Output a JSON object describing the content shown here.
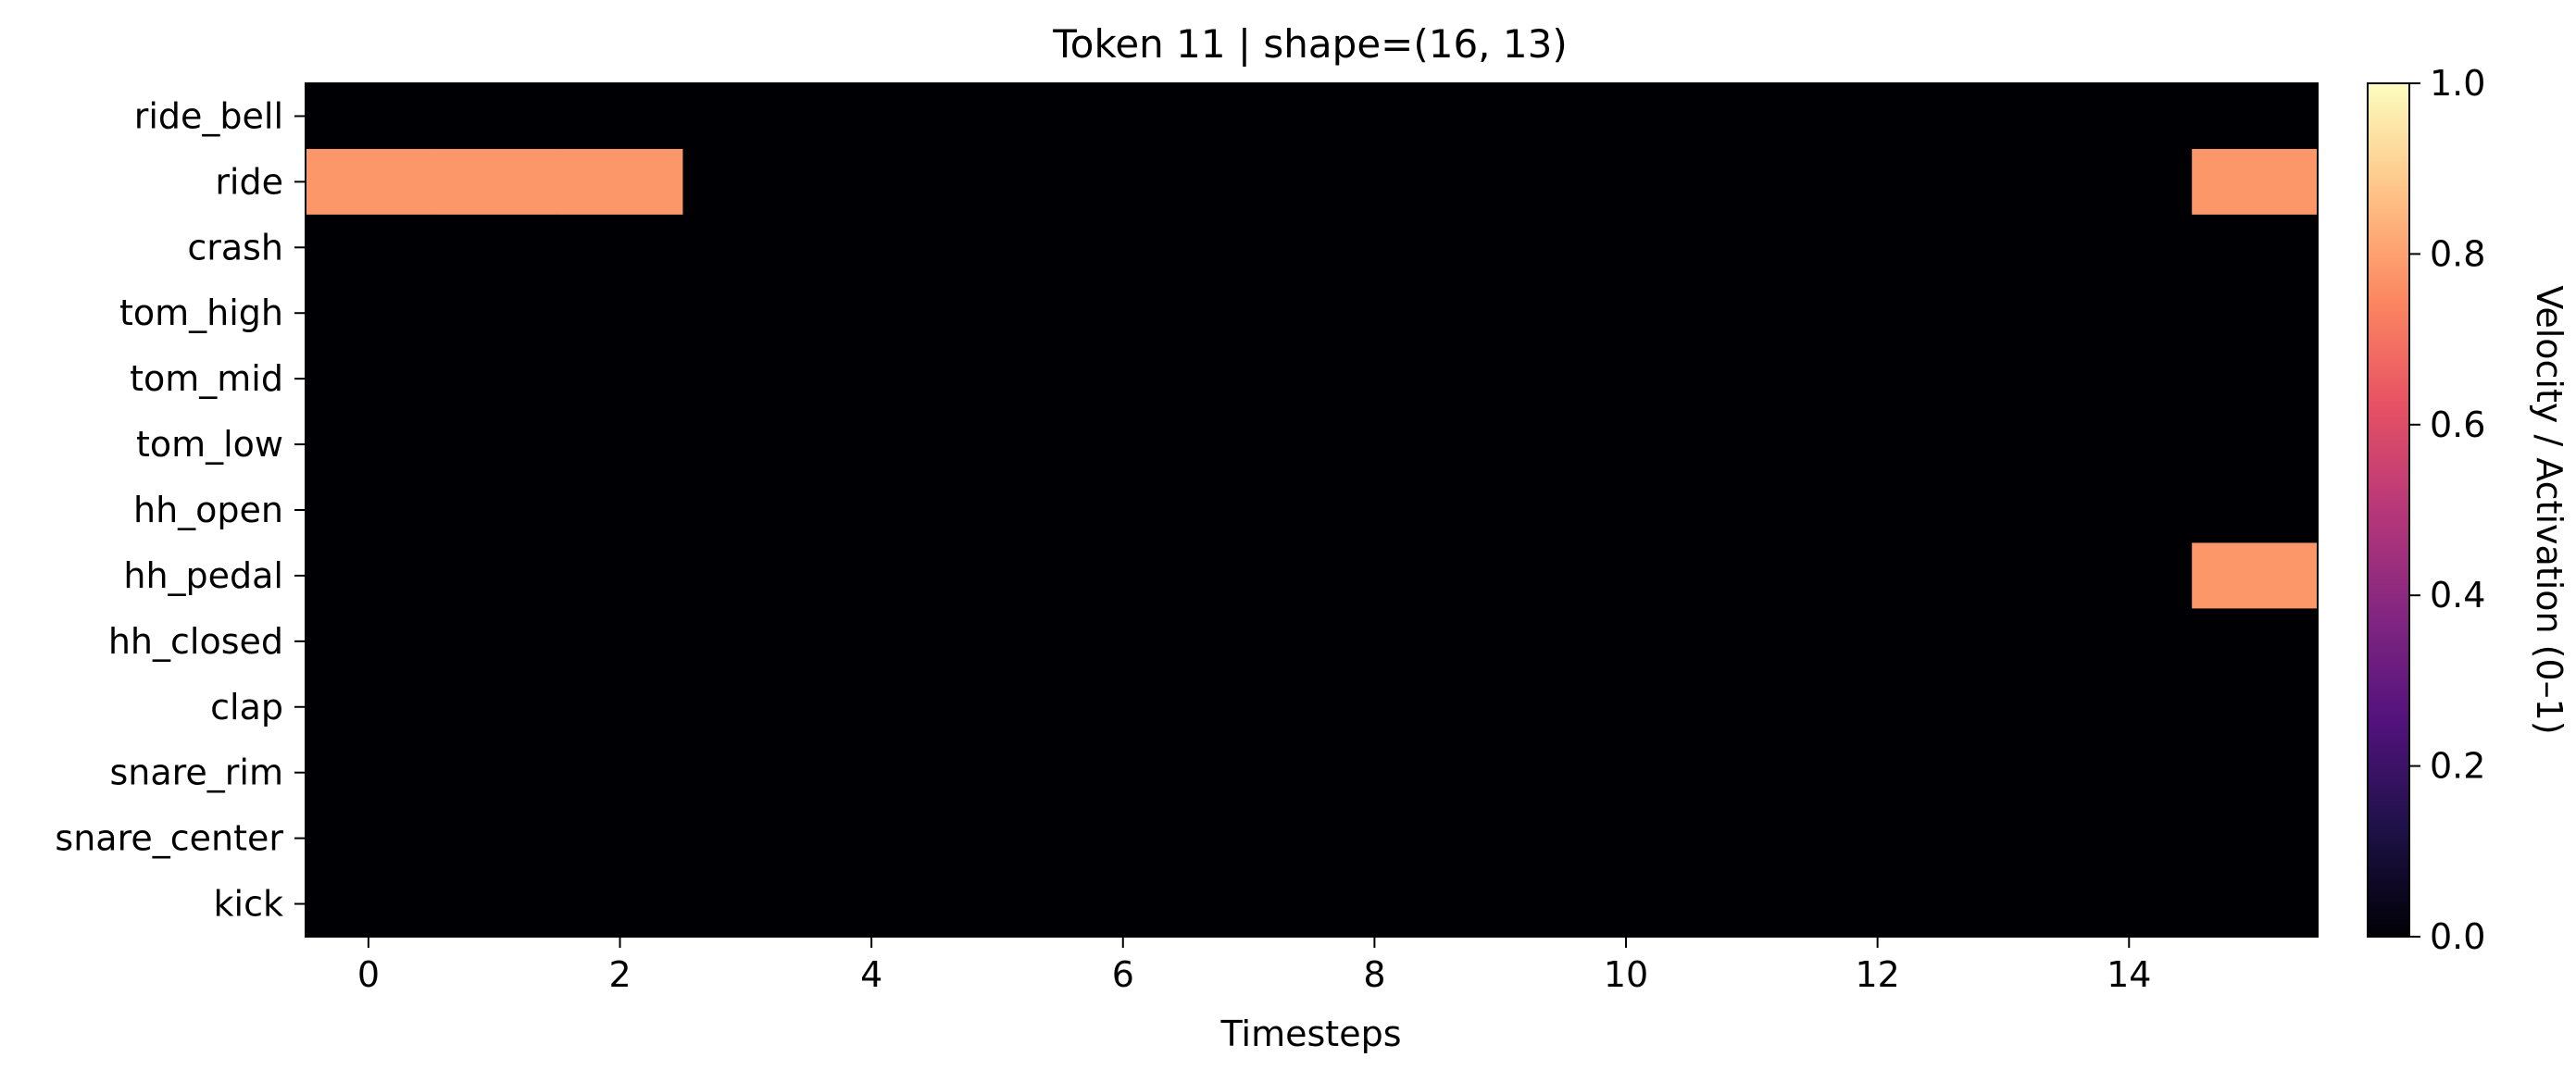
{
  "chart_data": {
    "type": "heatmap",
    "title": "Token 11 | shape=(16, 13)",
    "xlabel": "Timesteps",
    "ylabel": "",
    "x_ticks": [
      0,
      2,
      4,
      6,
      8,
      10,
      12,
      14
    ],
    "xlim": [
      -0.5,
      15.5
    ],
    "rows": [
      "ride_bell",
      "ride",
      "crash",
      "tom_high",
      "tom_mid",
      "tom_low",
      "hh_open",
      "hh_pedal",
      "hh_closed",
      "clap",
      "snare_rim",
      "snare_center",
      "kick"
    ],
    "n_timesteps": 16,
    "values": [
      [
        0,
        0,
        0,
        0,
        0,
        0,
        0,
        0,
        0,
        0,
        0,
        0,
        0,
        0,
        0,
        0
      ],
      [
        0.78,
        0.78,
        0.78,
        0,
        0,
        0,
        0,
        0,
        0,
        0,
        0,
        0,
        0,
        0,
        0,
        0.78
      ],
      [
        0,
        0,
        0,
        0,
        0,
        0,
        0,
        0,
        0,
        0,
        0,
        0,
        0,
        0,
        0,
        0
      ],
      [
        0,
        0,
        0,
        0,
        0,
        0,
        0,
        0,
        0,
        0,
        0,
        0,
        0,
        0,
        0,
        0
      ],
      [
        0,
        0,
        0,
        0,
        0,
        0,
        0,
        0,
        0,
        0,
        0,
        0,
        0,
        0,
        0,
        0
      ],
      [
        0,
        0,
        0,
        0,
        0,
        0,
        0,
        0,
        0,
        0,
        0,
        0,
        0,
        0,
        0,
        0
      ],
      [
        0,
        0,
        0,
        0,
        0,
        0,
        0,
        0,
        0,
        0,
        0,
        0,
        0,
        0,
        0,
        0
      ],
      [
        0,
        0,
        0,
        0,
        0,
        0,
        0,
        0,
        0,
        0,
        0,
        0,
        0,
        0,
        0,
        0.78
      ],
      [
        0,
        0,
        0,
        0,
        0,
        0,
        0,
        0,
        0,
        0,
        0,
        0,
        0,
        0,
        0,
        0
      ],
      [
        0,
        0,
        0,
        0,
        0,
        0,
        0,
        0,
        0,
        0,
        0,
        0,
        0,
        0,
        0,
        0
      ],
      [
        0,
        0,
        0,
        0,
        0,
        0,
        0,
        0,
        0,
        0,
        0,
        0,
        0,
        0,
        0,
        0
      ],
      [
        0,
        0,
        0,
        0,
        0,
        0,
        0,
        0,
        0,
        0,
        0,
        0,
        0,
        0,
        0,
        0
      ],
      [
        0,
        0,
        0,
        0,
        0,
        0,
        0,
        0,
        0,
        0,
        0,
        0,
        0,
        0,
        0,
        0
      ]
    ],
    "colorbar": {
      "label": "Velocity / Activation (0–1)",
      "range": [
        0,
        1
      ],
      "ticks": [
        "0.0",
        "0.2",
        "0.4",
        "0.6",
        "0.8",
        "1.0"
      ],
      "colormap": "magma"
    },
    "legend": "none",
    "grid": false
  }
}
